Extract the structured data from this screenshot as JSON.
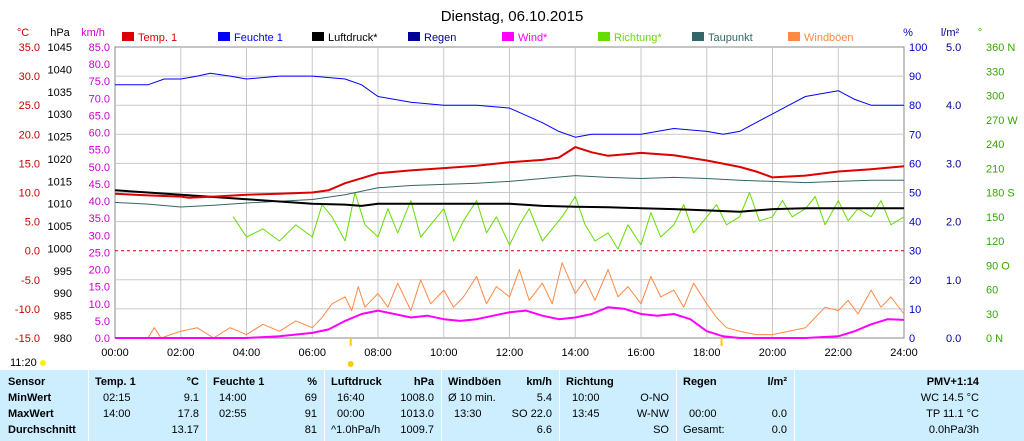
{
  "chart_data": {
    "type": "line",
    "title": "Dienstag, 06.10.2015",
    "x_ticks": [
      "00:00",
      "02:00",
      "04:00",
      "06:00",
      "08:00",
      "10:00",
      "12:00",
      "14:00",
      "16:00",
      "18:00",
      "20:00",
      "22:00",
      "24:00"
    ],
    "xlim": [
      0,
      24
    ],
    "axes": {
      "temp": {
        "unit": "°C",
        "range": [
          -15,
          35
        ],
        "ticks": [
          "35.0",
          "30.0",
          "25.0",
          "20.0",
          "15.0",
          "10.0",
          "5.0",
          "0.0",
          "-5.0",
          "-10.0",
          "-15.0"
        ]
      },
      "pressure": {
        "unit": "hPa",
        "range": [
          980,
          1045
        ],
        "ticks": [
          "1045",
          "1040",
          "1035",
          "1030",
          "1025",
          "1020",
          "1015",
          "1010",
          "1005",
          "1000",
          "995",
          "990",
          "985",
          "980"
        ]
      },
      "wind": {
        "unit": "km/h",
        "range": [
          0,
          85
        ],
        "ticks": [
          "85.0",
          "80.0",
          "75.0",
          "70.0",
          "65.0",
          "60.0",
          "55.0",
          "50.0",
          "45.0",
          "40.0",
          "35.0",
          "30.0",
          "25.0",
          "20.0",
          "15.0",
          "10.0",
          "5.0",
          "0.0"
        ]
      },
      "humidity": {
        "unit": "%",
        "range": [
          0,
          100
        ],
        "ticks": [
          "100",
          "90",
          "80",
          "70",
          "60",
          "50",
          "40",
          "30",
          "20",
          "10",
          "0"
        ]
      },
      "rain": {
        "unit": "l/m²",
        "range": [
          0,
          5
        ],
        "ticks": [
          "5.0",
          "4.0",
          "3.0",
          "2.0",
          "1.0",
          "0.0"
        ]
      },
      "direction": {
        "unit": "°",
        "range": [
          0,
          360
        ],
        "ticks": [
          "360 N",
          "330",
          "300",
          "270 W",
          "240",
          "210",
          "180 S",
          "150",
          "120",
          "90 O",
          "60",
          "30",
          "0 N"
        ]
      }
    },
    "legend": [
      {
        "name": "Temp. 1",
        "color": "#dd0000"
      },
      {
        "name": "Feuchte 1",
        "color": "#0000ff"
      },
      {
        "name": "Luftdruck*",
        "color": "#000000"
      },
      {
        "name": "Regen",
        "color": "#000099"
      },
      {
        "name": "Wind*",
        "color": "#ff00ff"
      },
      {
        "name": "Richtung*",
        "color": "#66dd00"
      },
      {
        "name": "Taupunkt",
        "color": "#336666"
      },
      {
        "name": "Windböen",
        "color": "#ff8844"
      }
    ],
    "series": [
      {
        "name": "Temp. 1",
        "axis": "temp",
        "color": "#dd0000",
        "x": [
          0,
          1,
          2,
          2.25,
          3,
          4,
          5,
          6,
          6.5,
          7,
          8,
          9,
          10,
          11,
          12,
          13,
          13.5,
          14,
          14.5,
          15,
          16,
          17,
          18,
          19,
          19.5,
          20,
          21,
          22,
          23,
          24
        ],
        "y": [
          9.8,
          9.5,
          9.3,
          9.1,
          9.3,
          9.6,
          9.8,
          10.0,
          10.4,
          11.6,
          13.3,
          13.8,
          14.2,
          14.6,
          15.2,
          15.6,
          16.0,
          17.8,
          16.9,
          16.3,
          16.8,
          16.4,
          15.5,
          14.4,
          13.6,
          12.6,
          12.9,
          13.6,
          14.0,
          14.5
        ]
      },
      {
        "name": "Feuchte 1",
        "axis": "humidity",
        "color": "#0000ff",
        "x": [
          0,
          1,
          1.5,
          2,
          2.5,
          2.9,
          3.5,
          4,
          5,
          6,
          7,
          7.5,
          8,
          9,
          10,
          11,
          12,
          13,
          13.5,
          14,
          14.5,
          15,
          16,
          17,
          18,
          18.5,
          19,
          20,
          20.5,
          21,
          22,
          22.5,
          23,
          24
        ],
        "y": [
          87,
          87,
          89,
          89,
          90,
          91,
          90,
          89,
          90,
          90,
          89,
          87,
          83,
          81,
          80,
          80,
          79,
          74,
          71,
          69,
          70,
          70,
          70,
          72,
          71,
          70,
          71,
          77,
          80,
          83,
          85,
          82,
          80,
          80
        ]
      },
      {
        "name": "Luftdruck*",
        "axis": "pressure",
        "color": "#000000",
        "x": [
          0,
          1,
          2,
          3,
          4,
          5,
          6,
          7,
          7.5,
          8,
          9,
          10,
          11,
          12,
          13,
          14,
          15,
          16,
          17,
          18,
          19,
          20,
          21,
          22,
          23,
          24
        ],
        "y": [
          1013.0,
          1012.5,
          1012.0,
          1011.5,
          1011.0,
          1010.5,
          1010.0,
          1009.8,
          1009.5,
          1010.0,
          1010.0,
          1010.0,
          1010.0,
          1010.0,
          1009.5,
          1009.3,
          1009.2,
          1009.0,
          1008.8,
          1008.5,
          1008.2,
          1008.8,
          1009.0,
          1009.0,
          1009.0,
          1009.0
        ]
      },
      {
        "name": "Taupunkt",
        "axis": "temp",
        "color": "#336666",
        "x": [
          0,
          1,
          2,
          3,
          4,
          5,
          6,
          7,
          8,
          9,
          10,
          11,
          12,
          13,
          14,
          15,
          16,
          17,
          18,
          19,
          20,
          21,
          22,
          23,
          24
        ],
        "y": [
          8.3,
          8.0,
          7.5,
          7.8,
          8.2,
          8.5,
          8.8,
          9.6,
          10.8,
          11.2,
          11.4,
          11.6,
          11.9,
          12.4,
          12.9,
          12.6,
          12.4,
          12.6,
          12.4,
          12.1,
          11.9,
          11.7,
          11.9,
          12.1,
          12.1
        ]
      },
      {
        "name": "Richtung*",
        "axis": "direction",
        "color": "#66dd00",
        "x": [
          3.6,
          4,
          4.5,
          5,
          5.5,
          6,
          6.3,
          6.6,
          7,
          7.3,
          7.6,
          8,
          8.3,
          8.6,
          9,
          9.3,
          9.6,
          10,
          10.3,
          10.6,
          11,
          11.3,
          11.6,
          12,
          12.3,
          12.6,
          13,
          13.3,
          13.6,
          14,
          14.3,
          14.6,
          15,
          15.3,
          15.6,
          16,
          16.3,
          16.6,
          17,
          17.3,
          17.6,
          18,
          18.3,
          18.6,
          19,
          19.3,
          19.6,
          20,
          20.3,
          20.6,
          21,
          21.3,
          21.6,
          22,
          22.3,
          22.6,
          23,
          23.3,
          23.6,
          24
        ],
        "y": [
          150,
          125,
          135,
          120,
          140,
          125,
          165,
          150,
          120,
          180,
          140,
          125,
          160,
          130,
          170,
          125,
          140,
          160,
          120,
          145,
          170,
          130,
          150,
          115,
          140,
          160,
          120,
          135,
          150,
          175,
          140,
          120,
          130,
          110,
          140,
          115,
          155,
          125,
          140,
          165,
          130,
          150,
          165,
          140,
          150,
          180,
          145,
          150,
          170,
          150,
          160,
          175,
          140,
          170,
          145,
          160,
          150,
          170,
          140,
          150
        ]
      },
      {
        "name": "Windböen",
        "axis": "wind",
        "color": "#ff8844",
        "x": [
          0,
          1,
          1.2,
          1.4,
          2,
          2.5,
          3,
          3.5,
          4,
          4.5,
          5,
          5.5,
          6,
          6.3,
          6.6,
          7,
          7.2,
          7.4,
          7.6,
          7.8,
          8,
          8.3,
          8.6,
          9,
          9.3,
          9.6,
          10,
          10.3,
          10.6,
          11,
          11.3,
          11.6,
          12,
          12.3,
          12.6,
          13,
          13.3,
          13.6,
          14,
          14.3,
          14.6,
          15,
          15.3,
          15.6,
          16,
          16.3,
          16.6,
          17,
          17.3,
          17.6,
          18,
          18.3,
          18.6,
          19,
          19.5,
          20,
          20.5,
          21,
          21.3,
          21.6,
          22,
          22.3,
          22.6,
          23,
          23.3,
          23.6,
          24
        ],
        "y": [
          0,
          0,
          3,
          0,
          2,
          3,
          0,
          3,
          1,
          4,
          2,
          5,
          3,
          6,
          10,
          12,
          8,
          15,
          9,
          11,
          13,
          9,
          16,
          8,
          17,
          10,
          14,
          9,
          12,
          18,
          10,
          15,
          12,
          20,
          11,
          16,
          10,
          22,
          13,
          17,
          11,
          20,
          12,
          15,
          10,
          18,
          12,
          14,
          9,
          16,
          10,
          6,
          3,
          2,
          1,
          1,
          2,
          3,
          6,
          9,
          8,
          11,
          7,
          14,
          9,
          12,
          7
        ]
      },
      {
        "name": "Wind*",
        "axis": "wind",
        "color": "#ff00ff",
        "x": [
          0,
          2,
          4,
          5,
          6,
          6.5,
          7,
          7.5,
          8,
          8.5,
          9,
          9.5,
          10,
          10.5,
          11,
          11.5,
          12,
          12.5,
          13,
          13.5,
          14,
          14.5,
          15,
          15.5,
          16,
          16.5,
          17,
          17.5,
          18,
          18.5,
          19,
          19.5,
          20,
          21,
          22,
          22.5,
          23,
          23.5,
          24
        ],
        "y": [
          0,
          0,
          0,
          0.5,
          1.5,
          2.5,
          5,
          7,
          8,
          7,
          6,
          6.5,
          5.5,
          5,
          5.5,
          6.5,
          7.5,
          8,
          6.5,
          5.5,
          6,
          7,
          9,
          8.5,
          7,
          6.5,
          7,
          5.5,
          2,
          0.5,
          0,
          0,
          0,
          0,
          0.5,
          2,
          4,
          5.5,
          5.3
        ]
      }
    ]
  },
  "time_marker": "11:20",
  "table": {
    "headers": [
      {
        "label": "Sensor",
        "unit": ""
      },
      {
        "label": "Temp. 1",
        "unit": "°C"
      },
      {
        "label": "Feuchte 1",
        "unit": "%"
      },
      {
        "label": "Luftdruck",
        "unit": "hPa"
      },
      {
        "label": "Windböen",
        "unit": "km/h"
      },
      {
        "label": "Richtung",
        "unit": ""
      },
      {
        "label": "Regen",
        "unit": "l/m²"
      },
      {
        "label": "PMV+1:14",
        "unit": ""
      }
    ],
    "rows": [
      {
        "label": "MinWert",
        "temp": [
          "02:15",
          "9.1"
        ],
        "hum": [
          "14:00",
          "69"
        ],
        "press": [
          "16:40",
          "1008.0"
        ],
        "wind": [
          "Ø 10 min.",
          "5.4"
        ],
        "dir": [
          "10:00",
          "O-NO"
        ],
        "rain": [
          "",
          ""
        ],
        "pmv": "WC 14.5 °C"
      },
      {
        "label": "MaxWert",
        "temp": [
          "14:00",
          "17.8"
        ],
        "hum": [
          "02:55",
          "91"
        ],
        "press": [
          "00:00",
          "1013.0"
        ],
        "wind": [
          "13:30",
          "SO 22.0"
        ],
        "dir": [
          "13:45",
          "W-NW"
        ],
        "rain": [
          "00:00",
          "0.0"
        ],
        "pmv": "TP 11.1 °C"
      },
      {
        "label": "Durchschnitt",
        "temp": [
          "",
          "13.17"
        ],
        "hum": [
          "",
          "81"
        ],
        "press": [
          "^1.0hPa/h",
          "1009.7"
        ],
        "wind": [
          "",
          "6.6"
        ],
        "dir": [
          "",
          "SO"
        ],
        "rain": [
          "Gesamt:",
          "0.0"
        ],
        "pmv": "0.0hPa/3h"
      }
    ]
  }
}
